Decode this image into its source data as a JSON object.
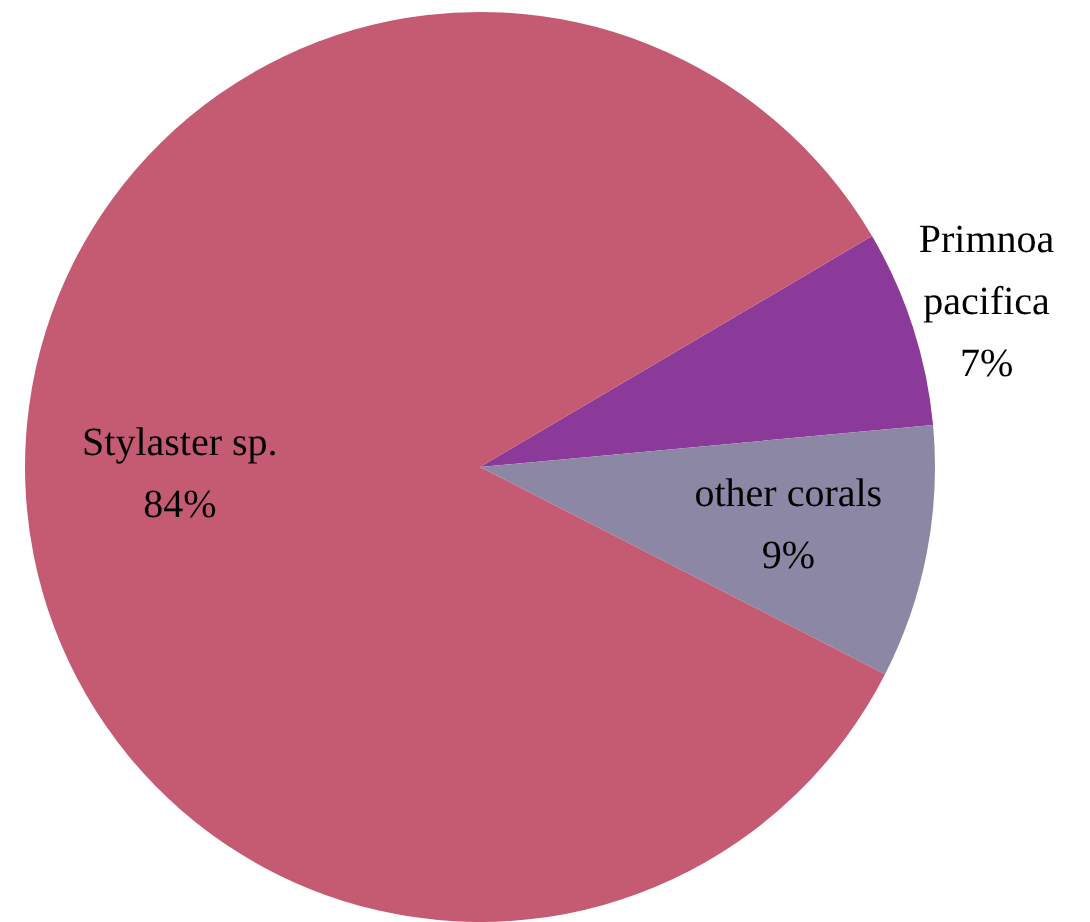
{
  "chart_data": {
    "type": "pie",
    "categories": [
      "Primnoa pacifica",
      "other corals",
      "Stylaster sp."
    ],
    "values": [
      7,
      9,
      84
    ],
    "colors": [
      "#8b3a9a",
      "#8d87a6",
      "#c55a73"
    ],
    "value_labels": [
      "7%",
      "9%",
      "84%"
    ],
    "legend": false
  }
}
